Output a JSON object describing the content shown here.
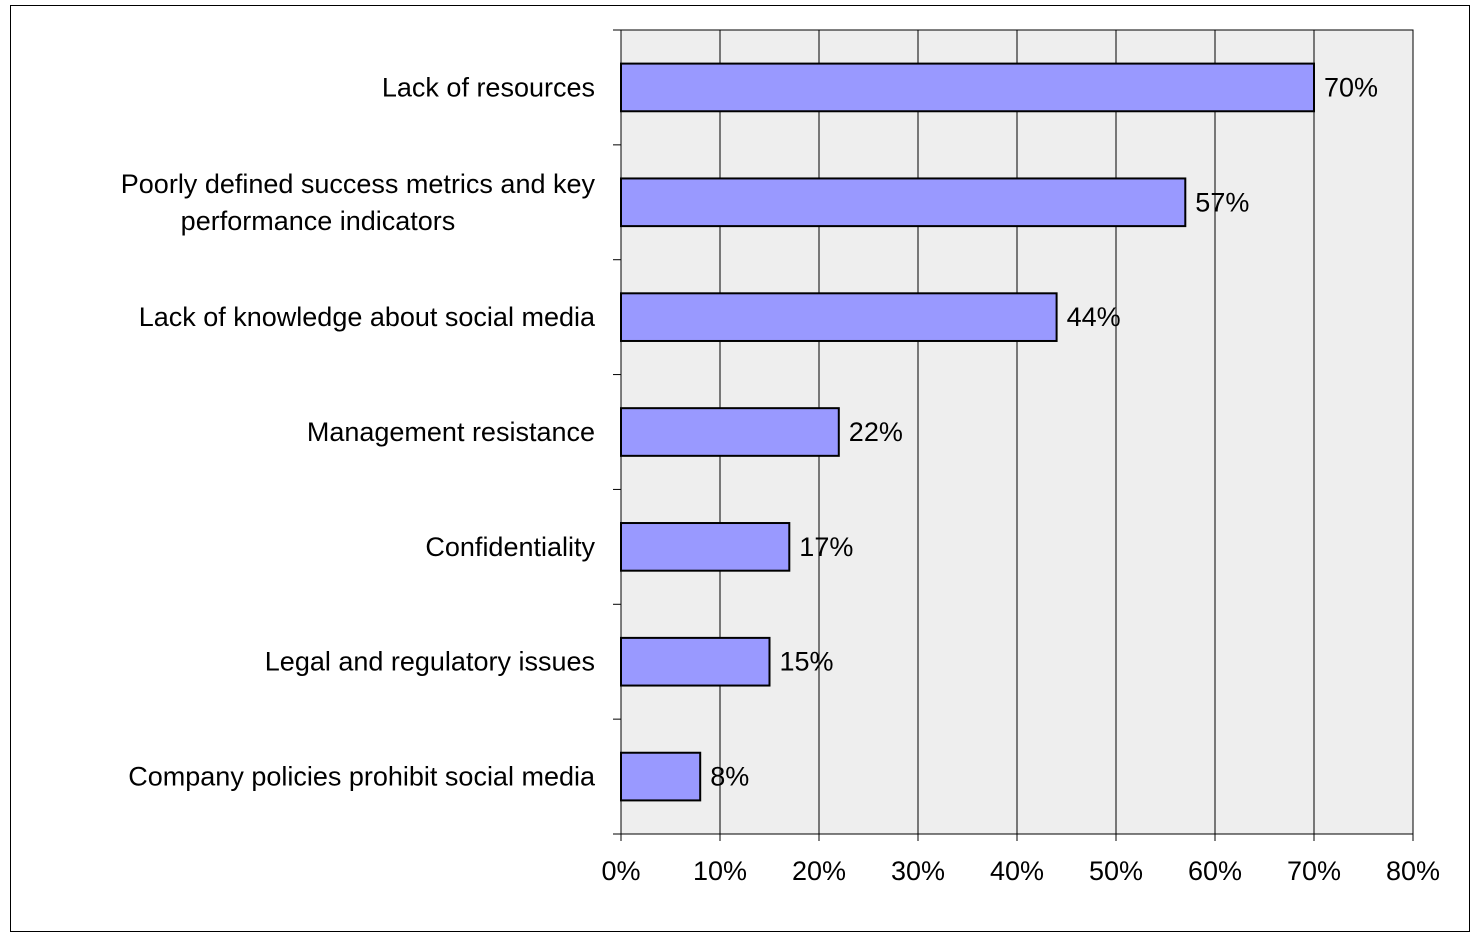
{
  "chart_data": {
    "type": "bar",
    "orientation": "horizontal",
    "title": "",
    "xlabel": "",
    "ylabel": "",
    "categories": [
      [
        "Lack of resources"
      ],
      [
        "Poorly defined success metrics and key",
        "performance indicators"
      ],
      [
        "Lack of knowledge about social media"
      ],
      [
        "Management resistance"
      ],
      [
        "Confidentiality"
      ],
      [
        "Legal and regulatory issues"
      ],
      [
        "Company policies prohibit social media"
      ]
    ],
    "values": [
      70,
      57,
      44,
      22,
      17,
      15,
      8
    ],
    "value_labels": [
      "70%",
      "57%",
      "44%",
      "22%",
      "17%",
      "15%",
      "8%"
    ],
    "xlim": [
      0,
      80
    ],
    "x_ticks": [
      0,
      10,
      20,
      30,
      40,
      50,
      60,
      70,
      80
    ],
    "x_tick_labels": [
      "0%",
      "10%",
      "20%",
      "30%",
      "40%",
      "50%",
      "60%",
      "70%",
      "80%"
    ],
    "grid": true,
    "legend": "none",
    "colors": {
      "bar_fill": "#9999FF",
      "bar_stroke": "#000000",
      "plot_background": "#EEEEEE",
      "gridline": "#000000"
    }
  }
}
